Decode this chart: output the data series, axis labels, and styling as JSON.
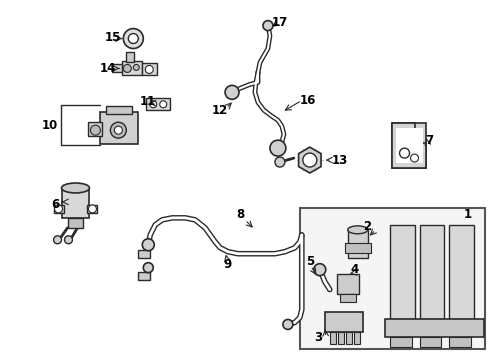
{
  "bg_color": "#ffffff",
  "lc": "#2a2a2a",
  "fig_width": 4.89,
  "fig_height": 3.6,
  "dpi": 100,
  "label_fs": 8.5,
  "arrow_lw": 0.7
}
